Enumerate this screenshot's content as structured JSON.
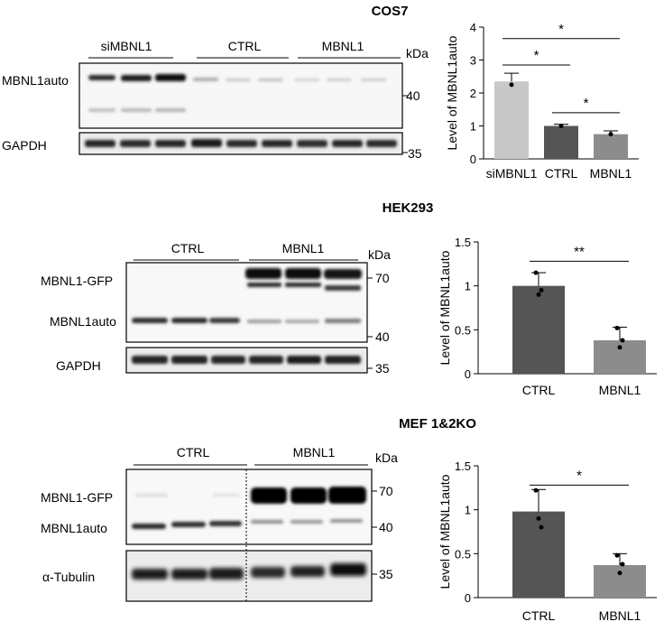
{
  "panels": [
    {
      "title": "COS7",
      "groups": [
        "siMBNL1",
        "CTRL",
        "MBNL1"
      ],
      "kda_label": "kDa",
      "row_labels": [
        "MBNL1auto",
        "GAPDH"
      ],
      "markers": [
        "40",
        "35"
      ]
    },
    {
      "title": "HEK293",
      "groups": [
        "CTRL",
        "MBNL1"
      ],
      "kda_label": "kDa",
      "row_labels": [
        "MBNL1-GFP",
        "MBNL1auto",
        "GAPDH"
      ],
      "markers": [
        "70",
        "40",
        "35"
      ]
    },
    {
      "title": "MEF 1&2KO",
      "groups": [
        "CTRL",
        "MBNL1"
      ],
      "kda_label": "kDa",
      "row_labels": [
        "MBNL1-GFP",
        "MBNL1auto",
        "α-Tubulin"
      ],
      "markers": [
        "70",
        "40",
        "35"
      ]
    }
  ],
  "chart_data": [
    {
      "type": "bar",
      "categories": [
        "siMBNL1",
        "CTRL",
        "MBNL1"
      ],
      "values": [
        2.35,
        1.0,
        0.75
      ],
      "errors": [
        0.25,
        0.05,
        0.1
      ],
      "points": [
        [
          2.25
        ],
        [
          1.0
        ],
        [
          0.75
        ]
      ],
      "colors": [
        "#c8c8c8",
        "#555555",
        "#8c8c8c"
      ],
      "ylabel": "Level of MBNL1auto",
      "ylim": [
        0,
        4
      ],
      "yticks": [
        "0",
        "1",
        "2",
        "3",
        "4"
      ],
      "significance": [
        {
          "from": 0,
          "to": 2,
          "label": "*",
          "y": 3.65
        },
        {
          "from": 0,
          "to": 1,
          "label": "*",
          "y": 2.85
        },
        {
          "from": 1,
          "to": 2,
          "label": "*",
          "y": 1.4
        }
      ]
    },
    {
      "type": "bar",
      "categories": [
        "CTRL",
        "MBNL1"
      ],
      "values": [
        1.0,
        0.38
      ],
      "errors": [
        0.15,
        0.15
      ],
      "points": [
        [
          1.15,
          0.9,
          0.95
        ],
        [
          0.52,
          0.3,
          0.38
        ]
      ],
      "colors": [
        "#555555",
        "#8c8c8c"
      ],
      "ylabel": "Level of MBNL1auto",
      "ylim": [
        0,
        1.5
      ],
      "yticks": [
        "0",
        "0.5",
        "1",
        "1.5"
      ],
      "significance": [
        {
          "from": 0,
          "to": 1,
          "label": "**",
          "y": 1.28
        }
      ]
    },
    {
      "type": "bar",
      "categories": [
        "CTRL",
        "MBNL1"
      ],
      "values": [
        0.98,
        0.37
      ],
      "errors": [
        0.25,
        0.13
      ],
      "points": [
        [
          1.22,
          0.9,
          0.8
        ],
        [
          0.48,
          0.28,
          0.38
        ]
      ],
      "colors": [
        "#555555",
        "#8c8c8c"
      ],
      "ylabel": "Level of MBNL1auto",
      "ylim": [
        0,
        1.5
      ],
      "yticks": [
        "0",
        "0.5",
        "1",
        "1.5"
      ],
      "significance": [
        {
          "from": 0,
          "to": 1,
          "label": "*",
          "y": 1.28
        }
      ]
    }
  ]
}
